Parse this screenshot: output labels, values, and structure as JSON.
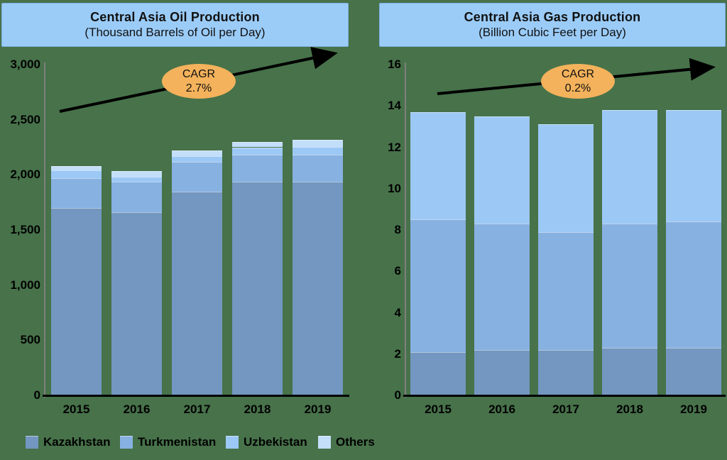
{
  "page": {
    "background_color": "#47724A"
  },
  "legend": [
    {
      "label": "Kazakhstan",
      "color": "#7397C0"
    },
    {
      "label": "Turkmenistan",
      "color": "#87B1E1"
    },
    {
      "label": "Uzbekistan",
      "color": "#9CC8F5"
    },
    {
      "label": "Others",
      "color": "#C3DEF9"
    }
  ],
  "annotation_color": "#F3B25B",
  "chart_data": [
    {
      "type": "bar",
      "stacked": true,
      "title": "Central Asia Oil Production",
      "subtitle": "(Thousand Barrels of Oil per Day)",
      "xlabel": "",
      "ylabel": "",
      "grid": false,
      "legend_position": "bottom-left",
      "ylim": [
        0,
        3000
      ],
      "ytick_labels": [
        "3,000",
        "2,500",
        "2,000",
        "1,500",
        "1,000",
        "500",
        "0"
      ],
      "categories": [
        "2015",
        "2016",
        "2017",
        "2018",
        "2019"
      ],
      "series": [
        {
          "name": "Kazakhstan",
          "color": "#7397C0",
          "values": [
            1700,
            1660,
            1850,
            1935,
            1935
          ]
        },
        {
          "name": "Turkmenistan",
          "color": "#87B1E1",
          "values": [
            270,
            275,
            265,
            250,
            250
          ]
        },
        {
          "name": "Uzbekistan",
          "color": "#9CC8F5",
          "values": [
            70,
            50,
            55,
            65,
            70
          ]
        },
        {
          "name": "Others",
          "color": "#C3DEF9",
          "values": [
            40,
            50,
            50,
            50,
            60
          ]
        }
      ],
      "totals": [
        2080,
        2035,
        2220,
        2300,
        2315
      ],
      "annotation": {
        "label": "CAGR",
        "value": "2.7%"
      }
    },
    {
      "type": "bar",
      "stacked": true,
      "title": "Central Asia Gas Production",
      "subtitle": "(Billion Cubic Feet per Day)",
      "xlabel": "",
      "ylabel": "",
      "grid": false,
      "legend_position": "bottom-left",
      "ylim": [
        0,
        16
      ],
      "ytick_labels": [
        "16",
        "14",
        "12",
        "10",
        "8",
        "6",
        "4",
        "2",
        "0"
      ],
      "categories": [
        "2015",
        "2016",
        "2017",
        "2018",
        "2019"
      ],
      "series": [
        {
          "name": "Kazakhstan",
          "color": "#7397C0",
          "values": [
            2.1,
            2.2,
            2.2,
            2.3,
            2.3
          ]
        },
        {
          "name": "Turkmenistan",
          "color": "#87B1E1",
          "values": [
            6.4,
            6.1,
            5.7,
            6.0,
            6.1
          ]
        },
        {
          "name": "Uzbekistan",
          "color": "#9CC8F5",
          "values": [
            5.2,
            5.2,
            5.2,
            5.5,
            5.4
          ]
        },
        {
          "name": "Others",
          "color": "#C3DEF9",
          "values": [
            0,
            0,
            0,
            0,
            0
          ]
        }
      ],
      "totals": [
        13.7,
        13.5,
        13.1,
        13.8,
        13.8
      ],
      "annotation": {
        "label": "CAGR",
        "value": "0.2%"
      }
    }
  ]
}
